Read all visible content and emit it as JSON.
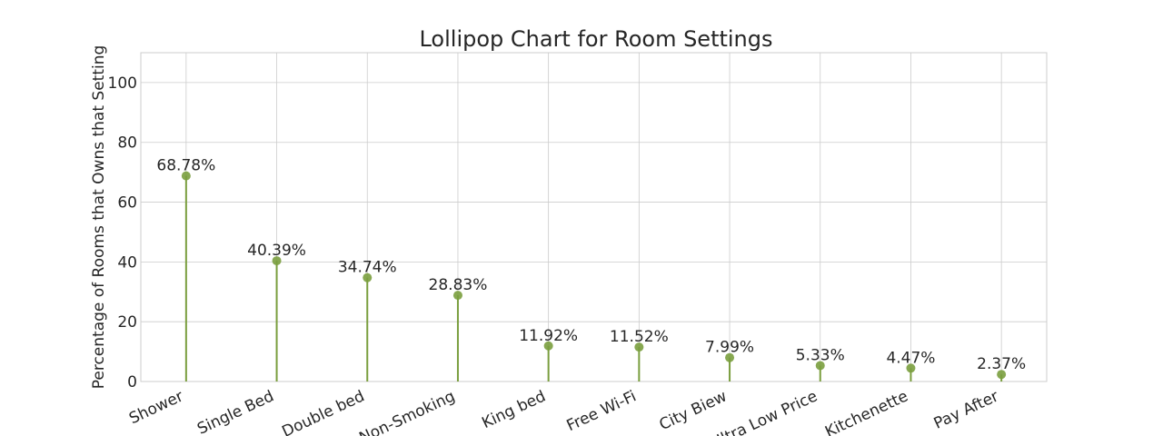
{
  "chart_data": {
    "type": "lollipop",
    "title": "Lollipop Chart for Room Settings",
    "xlabel": "",
    "ylabel": "Percentage of Rooms that Owns that Setting",
    "ylim": [
      0,
      110
    ],
    "yticks": [
      0,
      20,
      40,
      60,
      80,
      100
    ],
    "grid": true,
    "color": "#7a9e3e",
    "categories": [
      "Shower",
      "Single Bed",
      "Double bed",
      "Non-Smoking",
      "King bed",
      "Free Wi-Fi",
      "City Biew",
      "Ultra Low Price",
      "Kitchenette",
      "Pay After"
    ],
    "values": [
      68.78,
      40.39,
      34.74,
      28.83,
      11.92,
      11.52,
      7.99,
      5.33,
      4.47,
      2.37
    ],
    "data_labels": [
      "68.78%",
      "40.39%",
      "34.74%",
      "28.83%",
      "11.92%",
      "11.52%",
      "7.99%",
      "5.33%",
      "4.47%",
      "2.37%"
    ]
  }
}
